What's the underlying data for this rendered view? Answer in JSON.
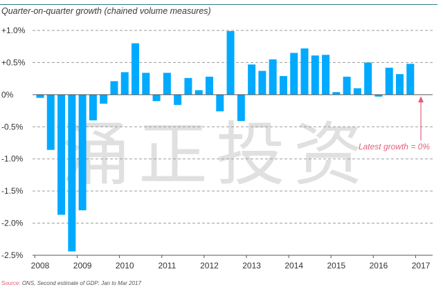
{
  "title": "Quarter-on-quarter growth (chained volume measures)",
  "source_label": "Source:",
  "source_text": "ONS, Second estimate of GDP: Jan to Mar 2017",
  "watermark": "涌正投资",
  "annotation": "Latest growth = 0%",
  "colors": {
    "bar": "#00aaff",
    "accent": "#e0607a",
    "grid": "#9a9a9a",
    "rule": "#2b7a8a"
  },
  "chart_data": {
    "type": "bar",
    "title": "Quarter-on-quarter growth (chained volume measures)",
    "ylim": [
      -2.5,
      1.0
    ],
    "y_ticks": [
      "+1.0%",
      "+0.5%",
      "0%",
      "-0.5%",
      "-1.0%",
      "-1.5%",
      "-2.0%",
      "-2.5%"
    ],
    "y_tick_values": [
      1.0,
      0.5,
      0,
      -0.5,
      -1.0,
      -1.5,
      -2.0,
      -2.5
    ],
    "x_tick_labels": [
      "2008",
      "2009",
      "2010",
      "2011",
      "2012",
      "2013",
      "2014",
      "2015",
      "2016",
      "2017"
    ],
    "categories": [
      "2008 Q1",
      "2008 Q2",
      "2008 Q3",
      "2008 Q4",
      "2009 Q1",
      "2009 Q2",
      "2009 Q3",
      "2009 Q4",
      "2010 Q1",
      "2010 Q2",
      "2010 Q3",
      "2010 Q4",
      "2011 Q1",
      "2011 Q2",
      "2011 Q3",
      "2011 Q4",
      "2012 Q1",
      "2012 Q2",
      "2012 Q3",
      "2012 Q4",
      "2013 Q1",
      "2013 Q2",
      "2013 Q3",
      "2013 Q4",
      "2014 Q1",
      "2014 Q2",
      "2014 Q3",
      "2014 Q4",
      "2015 Q1",
      "2015 Q2",
      "2015 Q3",
      "2015 Q4",
      "2016 Q1",
      "2016 Q2",
      "2016 Q3",
      "2016 Q4",
      "2017 Q1"
    ],
    "values": [
      -0.05,
      -0.86,
      -1.87,
      -2.44,
      -1.8,
      -0.4,
      -0.14,
      0.21,
      0.35,
      0.8,
      0.34,
      -0.1,
      0.34,
      -0.16,
      0.26,
      0.07,
      0.28,
      -0.26,
      0.99,
      -0.41,
      0.47,
      0.37,
      0.55,
      0.29,
      0.65,
      0.72,
      0.61,
      0.62,
      0.04,
      0.28,
      0.1,
      0.5,
      -0.03,
      0.42,
      0.32,
      0.48,
      0.0
    ],
    "grid": true
  }
}
